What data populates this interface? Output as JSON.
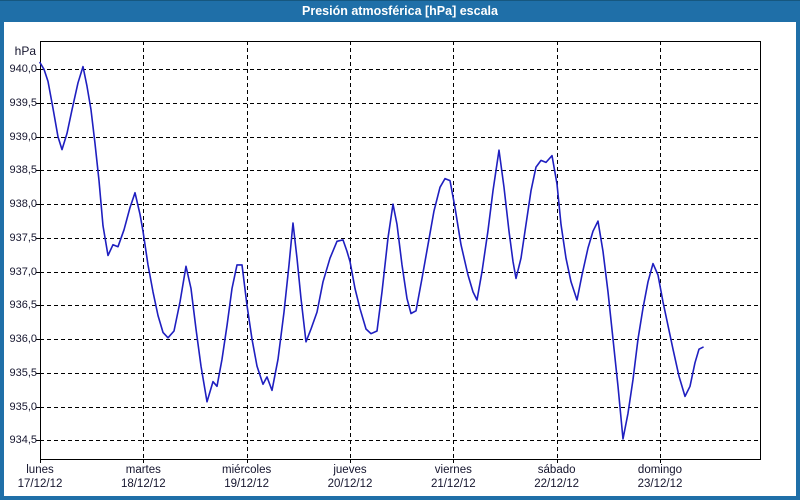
{
  "window": {
    "title": "Presión atmosférica [hPa] escala"
  },
  "chart_data": {
    "type": "line",
    "title": "Presión atmosférica [hPa] escala",
    "ylabel": "hPa",
    "grid": true,
    "legend": "none",
    "ylim": [
      934.2,
      940.45
    ],
    "xlim_days": [
      0,
      6.97
    ],
    "x_axis": {
      "days": [
        {
          "name": "lunes",
          "date": "17/12/12"
        },
        {
          "name": "martes",
          "date": "18/12/12"
        },
        {
          "name": "miércoles",
          "date": "19/12/12"
        },
        {
          "name": "jueves",
          "date": "20/12/12"
        },
        {
          "name": "viernes",
          "date": "21/12/12"
        },
        {
          "name": "sábado",
          "date": "22/12/12"
        },
        {
          "name": "domingo",
          "date": "23/12/12"
        }
      ]
    },
    "y_axis": {
      "ticks": [
        {
          "label": "940,0",
          "value": 940.0
        },
        {
          "label": "939,5",
          "value": 939.5
        },
        {
          "label": "939,0",
          "value": 939.0
        },
        {
          "label": "938,5",
          "value": 938.5
        },
        {
          "label": "938,0",
          "value": 938.0
        },
        {
          "label": "937,5",
          "value": 937.5
        },
        {
          "label": "937,0",
          "value": 937.0
        },
        {
          "label": "936,5",
          "value": 936.5
        },
        {
          "label": "936,0",
          "value": 936.0
        },
        {
          "label": "935,5",
          "value": 935.5
        },
        {
          "label": "935,0",
          "value": 935.0
        },
        {
          "label": "934,5",
          "value": 934.5
        }
      ]
    },
    "colors": {
      "titlebar": "#1f6fa8",
      "line": "#1f1fc0",
      "grid": "#000000",
      "background": "#ffffff"
    },
    "series": [
      {
        "name": "Presión atmosférica [hPa]",
        "color": "#1f1fc0",
        "points": [
          [
            0.0,
            940.1
          ],
          [
            0.039,
            940.0
          ],
          [
            0.077,
            939.82
          ],
          [
            0.126,
            939.42
          ],
          [
            0.174,
            939.0
          ],
          [
            0.213,
            938.81
          ],
          [
            0.261,
            939.05
          ],
          [
            0.31,
            939.4
          ],
          [
            0.368,
            939.8
          ],
          [
            0.416,
            940.04
          ],
          [
            0.455,
            939.75
          ],
          [
            0.494,
            939.4
          ],
          [
            0.532,
            938.9
          ],
          [
            0.571,
            938.35
          ],
          [
            0.61,
            937.68
          ],
          [
            0.658,
            937.24
          ],
          [
            0.706,
            937.4
          ],
          [
            0.755,
            937.37
          ],
          [
            0.813,
            937.62
          ],
          [
            0.871,
            937.95
          ],
          [
            0.919,
            938.17
          ],
          [
            0.968,
            937.85
          ],
          [
            0.997,
            937.6
          ],
          [
            1.045,
            937.1
          ],
          [
            1.094,
            936.7
          ],
          [
            1.142,
            936.35
          ],
          [
            1.19,
            936.1
          ],
          [
            1.239,
            936.02
          ],
          [
            1.297,
            936.12
          ],
          [
            1.355,
            936.55
          ],
          [
            1.413,
            937.08
          ],
          [
            1.461,
            936.75
          ],
          [
            1.51,
            936.15
          ],
          [
            1.558,
            935.6
          ],
          [
            1.616,
            935.07
          ],
          [
            1.674,
            935.37
          ],
          [
            1.713,
            935.3
          ],
          [
            1.761,
            935.7
          ],
          [
            1.81,
            936.2
          ],
          [
            1.858,
            936.75
          ],
          [
            1.906,
            937.1
          ],
          [
            1.955,
            937.1
          ],
          [
            2.003,
            936.5
          ],
          [
            2.052,
            936.0
          ],
          [
            2.1,
            935.6
          ],
          [
            2.158,
            935.33
          ],
          [
            2.197,
            935.44
          ],
          [
            2.245,
            935.24
          ],
          [
            2.303,
            935.7
          ],
          [
            2.361,
            936.4
          ],
          [
            2.41,
            937.1
          ],
          [
            2.448,
            937.72
          ],
          [
            2.487,
            937.2
          ],
          [
            2.526,
            936.6
          ],
          [
            2.574,
            935.96
          ],
          [
            2.623,
            936.15
          ],
          [
            2.681,
            936.4
          ],
          [
            2.739,
            936.85
          ],
          [
            2.806,
            937.2
          ],
          [
            2.874,
            937.45
          ],
          [
            2.932,
            937.47
          ],
          [
            2.971,
            937.3
          ],
          [
            3.0,
            937.15
          ],
          [
            3.048,
            936.75
          ],
          [
            3.097,
            936.45
          ],
          [
            3.155,
            936.15
          ],
          [
            3.203,
            936.08
          ],
          [
            3.261,
            936.12
          ],
          [
            3.31,
            936.7
          ],
          [
            3.368,
            937.5
          ],
          [
            3.416,
            938.0
          ],
          [
            3.455,
            937.7
          ],
          [
            3.503,
            937.1
          ],
          [
            3.552,
            936.6
          ],
          [
            3.59,
            936.38
          ],
          [
            3.639,
            936.42
          ],
          [
            3.697,
            936.9
          ],
          [
            3.755,
            937.4
          ],
          [
            3.813,
            937.9
          ],
          [
            3.871,
            938.25
          ],
          [
            3.919,
            938.38
          ],
          [
            3.968,
            938.35
          ],
          [
            4.016,
            937.95
          ],
          [
            4.074,
            937.4
          ],
          [
            4.142,
            936.95
          ],
          [
            4.19,
            936.7
          ],
          [
            4.229,
            936.58
          ],
          [
            4.277,
            937.0
          ],
          [
            4.335,
            937.6
          ],
          [
            4.384,
            938.2
          ],
          [
            4.442,
            938.8
          ],
          [
            4.49,
            938.25
          ],
          [
            4.539,
            937.6
          ],
          [
            4.577,
            937.15
          ],
          [
            4.606,
            936.9
          ],
          [
            4.655,
            937.2
          ],
          [
            4.703,
            937.7
          ],
          [
            4.752,
            938.2
          ],
          [
            4.8,
            938.55
          ],
          [
            4.848,
            938.65
          ],
          [
            4.897,
            938.62
          ],
          [
            4.955,
            938.72
          ],
          [
            5.003,
            938.3
          ],
          [
            5.042,
            937.7
          ],
          [
            5.09,
            937.2
          ],
          [
            5.139,
            936.85
          ],
          [
            5.197,
            936.58
          ],
          [
            5.245,
            936.95
          ],
          [
            5.303,
            937.35
          ],
          [
            5.352,
            937.6
          ],
          [
            5.4,
            937.75
          ],
          [
            5.448,
            937.3
          ],
          [
            5.497,
            936.7
          ],
          [
            5.545,
            936.0
          ],
          [
            5.594,
            935.3
          ],
          [
            5.642,
            934.52
          ],
          [
            5.69,
            934.9
          ],
          [
            5.739,
            935.4
          ],
          [
            5.787,
            936.0
          ],
          [
            5.835,
            936.45
          ],
          [
            5.884,
            936.85
          ],
          [
            5.932,
            937.12
          ],
          [
            5.981,
            936.95
          ],
          [
            6.029,
            936.55
          ],
          [
            6.077,
            936.2
          ],
          [
            6.126,
            935.85
          ],
          [
            6.184,
            935.45
          ],
          [
            6.242,
            935.15
          ],
          [
            6.29,
            935.3
          ],
          [
            6.339,
            935.65
          ],
          [
            6.377,
            935.85
          ],
          [
            6.416,
            935.88
          ]
        ]
      }
    ]
  }
}
